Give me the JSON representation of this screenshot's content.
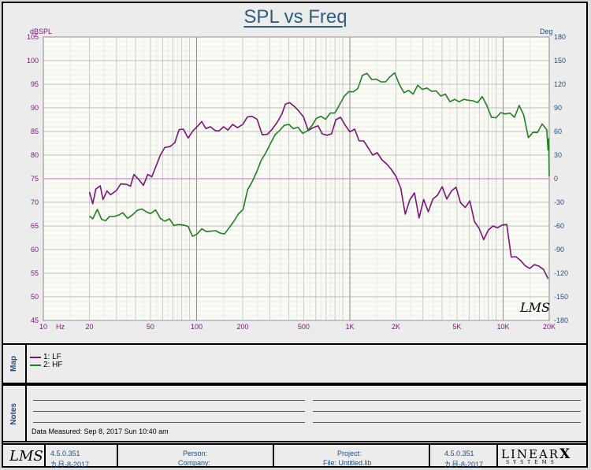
{
  "title": "SPL vs Freq",
  "colors": {
    "lf": "#7a1478",
    "hf": "#208020",
    "reference": "#d58ad5",
    "accent_text": "#2f5f7f"
  },
  "chart_data": {
    "type": "line",
    "title": "SPL vs Freq",
    "xscale": "log",
    "xlim": [
      10,
      20000
    ],
    "ylim_left": [
      45,
      105
    ],
    "ylim_right": [
      -180,
      180
    ],
    "ylabel_left": "dBSPL",
    "ylabel_right": "Deg",
    "xtick_labels": [
      "10",
      "Hz",
      "20",
      "50",
      "100",
      "200",
      "500",
      "1K",
      "2K",
      "5K",
      "10K",
      "20K"
    ],
    "ytick_left": [
      "105",
      "100",
      "95",
      "90",
      "85",
      "80",
      "75",
      "70",
      "65",
      "60",
      "55",
      "50",
      "45"
    ],
    "ytick_right": [
      "180",
      "150",
      "120",
      "90",
      "60",
      "30",
      "0",
      "-30",
      "-60",
      "-90",
      "-120",
      "-150",
      "-180"
    ],
    "grid": true,
    "reference_line": {
      "axis": "right",
      "value": 0
    },
    "series": [
      {
        "name": "1: LF",
        "color": "#7a1478",
        "points": [
          [
            20,
            72.2
          ],
          [
            21,
            69.7
          ],
          [
            22,
            72.8
          ],
          [
            23.5,
            73.5
          ],
          [
            24.5,
            70.6
          ],
          [
            26,
            72.4
          ],
          [
            27.5,
            71.6
          ],
          [
            30,
            72.5
          ],
          [
            32,
            73.9
          ],
          [
            35,
            73.8
          ],
          [
            37,
            73.4
          ],
          [
            39,
            75.9
          ],
          [
            42,
            74.8
          ],
          [
            45,
            73.6
          ],
          [
            48,
            75.9
          ],
          [
            51,
            75.4
          ],
          [
            54,
            77.4
          ],
          [
            58,
            80.0
          ],
          [
            62,
            81.6
          ],
          [
            67,
            81.8
          ],
          [
            72,
            82.6
          ],
          [
            77,
            85.4
          ],
          [
            82,
            85.5
          ],
          [
            88,
            83.6
          ],
          [
            95,
            85.2
          ],
          [
            102,
            86.2
          ],
          [
            108,
            87.1
          ],
          [
            115,
            85.6
          ],
          [
            123,
            86.0
          ],
          [
            132,
            85.2
          ],
          [
            140,
            85.1
          ],
          [
            150,
            86.0
          ],
          [
            160,
            85.3
          ],
          [
            172,
            86.5
          ],
          [
            185,
            85.8
          ],
          [
            200,
            86.5
          ],
          [
            215,
            88.1
          ],
          [
            230,
            88.2
          ],
          [
            248,
            87.6
          ],
          [
            268,
            84.3
          ],
          [
            290,
            84.4
          ],
          [
            310,
            85.4
          ],
          [
            335,
            86.9
          ],
          [
            360,
            88.7
          ],
          [
            380,
            90.8
          ],
          [
            405,
            91.1
          ],
          [
            435,
            90.3
          ],
          [
            465,
            89.3
          ],
          [
            500,
            88.0
          ],
          [
            535,
            85.2
          ],
          [
            575,
            85.8
          ],
          [
            620,
            86.2
          ],
          [
            660,
            84.5
          ],
          [
            710,
            84.2
          ],
          [
            760,
            84.5
          ],
          [
            810,
            87.5
          ],
          [
            870,
            88.0
          ],
          [
            930,
            86.4
          ],
          [
            1000,
            84.9
          ],
          [
            1075,
            85.5
          ],
          [
            1150,
            83.0
          ],
          [
            1230,
            83.0
          ],
          [
            1320,
            81.5
          ],
          [
            1410,
            80.0
          ],
          [
            1510,
            80.5
          ],
          [
            1620,
            79.0
          ],
          [
            1740,
            78.1
          ],
          [
            1860,
            77.0
          ],
          [
            2000,
            75.5
          ],
          [
            2150,
            73.0
          ],
          [
            2300,
            67.5
          ],
          [
            2460,
            70.5
          ],
          [
            2640,
            72.0
          ],
          [
            2830,
            66.7
          ],
          [
            3030,
            70.6
          ],
          [
            3250,
            68.0
          ],
          [
            3480,
            70.7
          ],
          [
            3730,
            71.5
          ],
          [
            4000,
            73.3
          ],
          [
            4290,
            70.7
          ],
          [
            4600,
            72.4
          ],
          [
            4930,
            73.2
          ],
          [
            5280,
            69.9
          ],
          [
            5660,
            68.9
          ],
          [
            6070,
            70.3
          ],
          [
            6500,
            65.9
          ],
          [
            6970,
            64.5
          ],
          [
            7470,
            62.1
          ],
          [
            8000,
            64.1
          ],
          [
            8580,
            65.0
          ],
          [
            9190,
            64.6
          ],
          [
            9850,
            65.2
          ],
          [
            10560,
            65.3
          ],
          [
            11300,
            58.4
          ],
          [
            12110,
            58.5
          ],
          [
            12980,
            57.7
          ],
          [
            13910,
            56.6
          ],
          [
            14910,
            56.0
          ],
          [
            15980,
            56.8
          ],
          [
            17120,
            56.5
          ],
          [
            18350,
            55.8
          ],
          [
            19670,
            53.8
          ]
        ]
      },
      {
        "name": "2: HF",
        "color": "#208020",
        "points": [
          [
            20,
            67.1
          ],
          [
            21,
            66.5
          ],
          [
            22.5,
            68.5
          ],
          [
            24,
            66.4
          ],
          [
            25.5,
            66.1
          ],
          [
            27,
            67.0
          ],
          [
            29,
            67.0
          ],
          [
            31,
            67.3
          ],
          [
            33,
            67.8
          ],
          [
            35.5,
            66.6
          ],
          [
            38,
            67.3
          ],
          [
            41,
            68.3
          ],
          [
            44,
            68.6
          ],
          [
            47,
            68.0
          ],
          [
            50,
            67.6
          ],
          [
            54,
            68.4
          ],
          [
            58,
            66.6
          ],
          [
            62,
            66.0
          ],
          [
            66.5,
            66.5
          ],
          [
            71,
            65.1
          ],
          [
            76,
            65.3
          ],
          [
            82,
            65.2
          ],
          [
            88,
            64.9
          ],
          [
            94,
            62.8
          ],
          [
            101,
            63.3
          ],
          [
            108,
            64.4
          ],
          [
            116,
            63.8
          ],
          [
            124,
            63.9
          ],
          [
            133,
            64.0
          ],
          [
            142,
            63.5
          ],
          [
            152,
            63.3
          ],
          [
            163,
            64.6
          ],
          [
            175,
            66.0
          ],
          [
            187,
            67.5
          ],
          [
            201,
            68.5
          ],
          [
            215,
            72.6
          ],
          [
            230,
            74.3
          ],
          [
            247,
            76.5
          ],
          [
            264,
            78.9
          ],
          [
            283,
            80.5
          ],
          [
            303,
            82.4
          ],
          [
            325,
            84.3
          ],
          [
            348,
            85.2
          ],
          [
            373,
            86.3
          ],
          [
            400,
            86.5
          ],
          [
            428,
            85.6
          ],
          [
            459,
            85.9
          ],
          [
            492,
            84.6
          ],
          [
            527,
            85.1
          ],
          [
            565,
            86.2
          ],
          [
            605,
            87.8
          ],
          [
            648,
            88.2
          ],
          [
            695,
            87.6
          ],
          [
            745,
            88.9
          ],
          [
            798,
            88.9
          ],
          [
            855,
            90.6
          ],
          [
            916,
            92.4
          ],
          [
            982,
            93.4
          ],
          [
            1052,
            93.4
          ],
          [
            1128,
            94.1
          ],
          [
            1208,
            96.9
          ],
          [
            1295,
            97.3
          ],
          [
            1388,
            96.0
          ],
          [
            1487,
            96.1
          ],
          [
            1594,
            95.5
          ],
          [
            1708,
            95.5
          ],
          [
            1830,
            96.6
          ],
          [
            1961,
            97.4
          ],
          [
            2102,
            95.0
          ],
          [
            2253,
            93.2
          ],
          [
            2414,
            93.7
          ],
          [
            2587,
            92.9
          ],
          [
            2773,
            94.8
          ],
          [
            2971,
            93.9
          ],
          [
            3184,
            94.2
          ],
          [
            3413,
            93.5
          ],
          [
            3657,
            93.6
          ],
          [
            3919,
            92.5
          ],
          [
            4200,
            92.9
          ],
          [
            4501,
            91.3
          ],
          [
            4824,
            91.8
          ],
          [
            5170,
            91.3
          ],
          [
            5541,
            91.8
          ],
          [
            5938,
            91.6
          ],
          [
            6364,
            91.5
          ],
          [
            6820,
            91.1
          ],
          [
            7309,
            92.4
          ],
          [
            7833,
            90.5
          ],
          [
            8395,
            88.0
          ],
          [
            8996,
            87.9
          ],
          [
            9641,
            89.0
          ],
          [
            10333,
            88.7
          ],
          [
            11074,
            88.9
          ],
          [
            11867,
            88.0
          ],
          [
            12718,
            90.5
          ],
          [
            13629,
            88.5
          ],
          [
            14606,
            83.7
          ],
          [
            15653,
            84.8
          ],
          [
            16775,
            84.8
          ],
          [
            17978,
            86.6
          ],
          [
            19267,
            85.4
          ],
          [
            19650,
            81.1
          ],
          [
            19850,
            83.5
          ],
          [
            20000,
            75.5
          ]
        ]
      }
    ]
  },
  "map": {
    "label": "Map",
    "items": [
      {
        "label": "1: LF"
      },
      {
        "label": "2: HF"
      }
    ]
  },
  "notes": {
    "label": "Notes",
    "measured": "Data Measured: Sep 8, 2017 Sun 10:40 am"
  },
  "footer": {
    "logo": "LMS",
    "version": "4.5.0.351",
    "date": "九月-8-2017",
    "person_label": "Person:",
    "company_label": "Company:",
    "project_label": "Project:",
    "file_label": "File: Untitled.lib",
    "version2": "4.5.0.351",
    "date2": "九月-8-2017",
    "brand": "LINEAR",
    "brand_x": "X",
    "brand_sub": "SYSTEMS"
  },
  "chart_watermark": "LMS"
}
